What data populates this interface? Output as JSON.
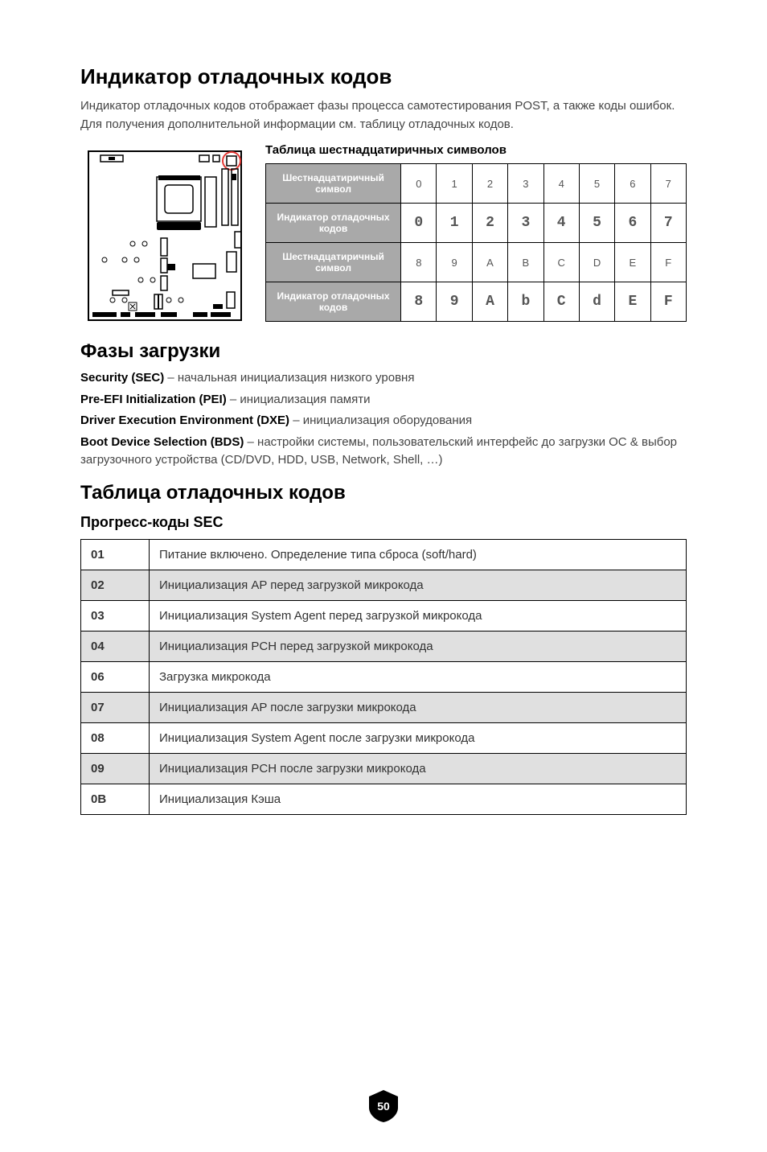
{
  "title": "Индикатор отладочных кодов",
  "intro": "Индикатор отладочных кодов отображает фазы процесса самотестирования POST, а также коды ошибок. Для получения дополнительной информации см. таблицу отладочных кодов.",
  "hex": {
    "title": "Таблица шестнадцатиричных символов",
    "row1_label": "Шестнадцатиричный символ",
    "row1": [
      "0",
      "1",
      "2",
      "3",
      "4",
      "5",
      "6",
      "7"
    ],
    "row2_label": "Индикатор отладочных кодов",
    "row2": [
      "0",
      "1",
      "2",
      "3",
      "4",
      "5",
      "6",
      "7"
    ],
    "row3_label": "Шестнадцатиричный символ",
    "row3": [
      "8",
      "9",
      "A",
      "B",
      "C",
      "D",
      "E",
      "F"
    ],
    "row4_label": "Индикатор отладочных кодов",
    "row4": [
      "8",
      "9",
      "A",
      "b",
      "C",
      "d",
      "E",
      "F"
    ]
  },
  "phases": {
    "title": "Фазы загрузки",
    "items": [
      {
        "b": "Security (SEC)",
        "t": " – начальная инициализация низкого уровня"
      },
      {
        "b": "Pre-EFI Initialization (PEI)",
        "t": " – инициализация памяти"
      },
      {
        "b": "Driver Execution Environment (DXE)",
        "t": " – инициализация оборудования"
      },
      {
        "b": "Boot Device Selection (BDS)",
        "t": " – настройки системы, пользовательский интерфейс до загрузки ОС & выбор загрузочного устройства (CD/DVD, HDD, USB, Network, Shell, …)"
      }
    ]
  },
  "codes": {
    "title": "Таблица отладочных кодов",
    "sec_title": "Прогресс-коды SEC",
    "rows": [
      {
        "code": "01",
        "desc": "Питание включено. Определение типа сброса (soft/hard)",
        "shade": false
      },
      {
        "code": "02",
        "desc": "Инициализация AP перед загрузкой микрокода",
        "shade": true
      },
      {
        "code": "03",
        "desc": "Инициализация System Agent перед загрузкой микрокода",
        "shade": false
      },
      {
        "code": "04",
        "desc": "Инициализация PCH перед загрузкой микрокода",
        "shade": true
      },
      {
        "code": "06",
        "desc": "Загрузка микрокода",
        "shade": false
      },
      {
        "code": "07",
        "desc": "Инициализация AP после загрузки микрокода",
        "shade": true
      },
      {
        "code": "08",
        "desc": "Инициализация System Agent после загрузки микрокода",
        "shade": false
      },
      {
        "code": "09",
        "desc": "Инициализация PCH после загрузки микрокода",
        "shade": true
      },
      {
        "code": "0B",
        "desc": "Инициализация Кэша",
        "shade": false
      }
    ]
  },
  "page_number": "50"
}
